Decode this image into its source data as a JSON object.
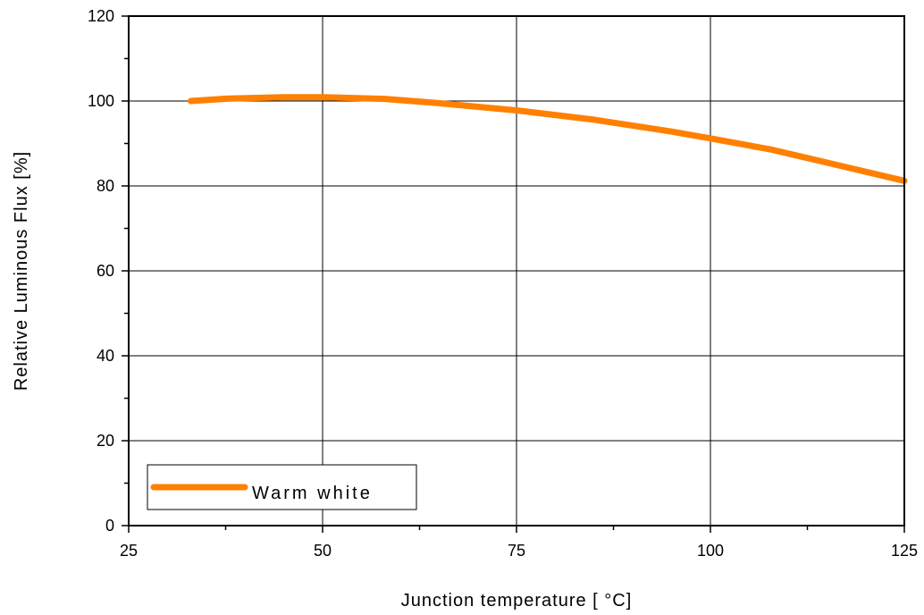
{
  "chart_data": {
    "type": "line",
    "xlabel": "Junction temperature [ °C]",
    "ylabel": "Relative Luminous Flux [%]",
    "xlim": [
      25,
      125
    ],
    "ylim": [
      0,
      120
    ],
    "x_ticks": [
      25,
      50,
      75,
      100,
      125
    ],
    "y_ticks": [
      0,
      20,
      40,
      60,
      80,
      100,
      120
    ],
    "grid": true,
    "legend_position": "bottom-left",
    "series": [
      {
        "name": "Warm white",
        "color": "#ff8000",
        "x": [
          33,
          38,
          45,
          50,
          58,
          65,
          75,
          85,
          95,
          100,
          108,
          115,
          125
        ],
        "y": [
          100,
          100.6,
          100.9,
          100.9,
          100.5,
          99.5,
          97.8,
          95.6,
          92.8,
          91.2,
          88.5,
          85.5,
          81.2
        ]
      }
    ]
  }
}
